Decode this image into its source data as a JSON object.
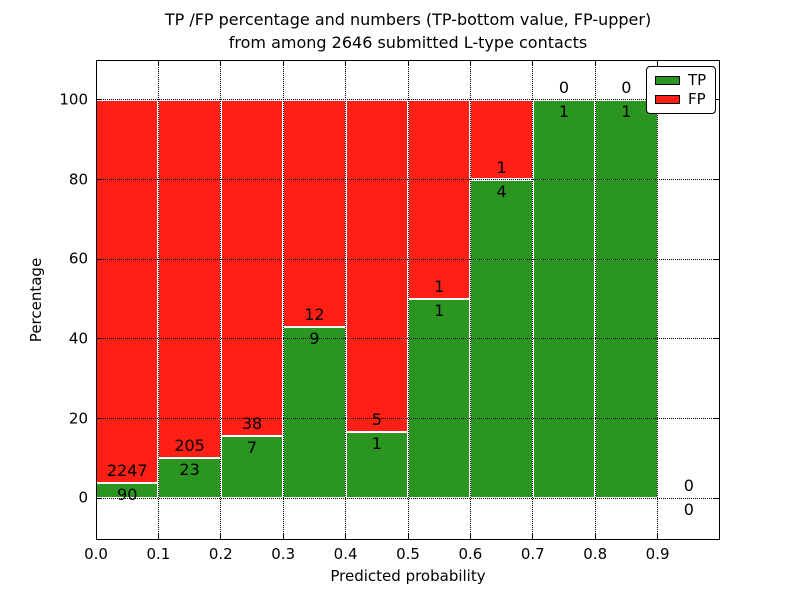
{
  "title": {
    "line1": "TP /FP percentage and numbers (TP-bottom value, FP-upper)",
    "line2": "from among 2646 submitted L-type contacts"
  },
  "legend": {
    "items": [
      {
        "label": "TP",
        "color": "#2a9621"
      },
      {
        "label": "FP",
        "color": "#ff1f14"
      }
    ]
  },
  "axes": {
    "x_ticks": [
      "0.0",
      "0.1",
      "0.2",
      "0.3",
      "0.4",
      "0.5",
      "0.6",
      "0.7",
      "0.8",
      "0.9"
    ],
    "y_ticks": [
      "0",
      "20",
      "40",
      "60",
      "80",
      "100"
    ]
  },
  "chart_data": {
    "type": "bar",
    "stacked": true,
    "title": "TP /FP percentage and numbers (TP-bottom value, FP-upper) from among 2646 submitted L-type contacts",
    "xlabel": "Predicted probability",
    "ylabel": "Percentage",
    "xlim": [
      0.0,
      1.0
    ],
    "ylim": [
      -10.5,
      110.0
    ],
    "grid": true,
    "legend_position": "upper right",
    "total_contacts": 2646,
    "colors": {
      "tp": "#2a9621",
      "fp": "#ff1f14"
    },
    "bins": [
      {
        "x0": 0.0,
        "x1": 0.1,
        "tp": 90,
        "fp": 2247,
        "tp_percent": 3.85
      },
      {
        "x0": 0.1,
        "x1": 0.2,
        "tp": 23,
        "fp": 205,
        "tp_percent": 10.09
      },
      {
        "x0": 0.2,
        "x1": 0.3,
        "tp": 7,
        "fp": 38,
        "tp_percent": 15.56
      },
      {
        "x0": 0.3,
        "x1": 0.4,
        "tp": 9,
        "fp": 12,
        "tp_percent": 42.86
      },
      {
        "x0": 0.4,
        "x1": 0.5,
        "tp": 1,
        "fp": 5,
        "tp_percent": 16.67
      },
      {
        "x0": 0.5,
        "x1": 0.6,
        "tp": 1,
        "fp": 1,
        "tp_percent": 50.0
      },
      {
        "x0": 0.6,
        "x1": 0.7,
        "tp": 4,
        "fp": 1,
        "tp_percent": 80.0
      },
      {
        "x0": 0.7,
        "x1": 0.8,
        "tp": 1,
        "fp": 0,
        "tp_percent": 100.0
      },
      {
        "x0": 0.8,
        "x1": 0.9,
        "tp": 1,
        "fp": 0,
        "tp_percent": 100.0
      },
      {
        "x0": 0.9,
        "x1": 1.0,
        "tp": 0,
        "fp": 0,
        "tp_percent": 0.0
      }
    ]
  }
}
